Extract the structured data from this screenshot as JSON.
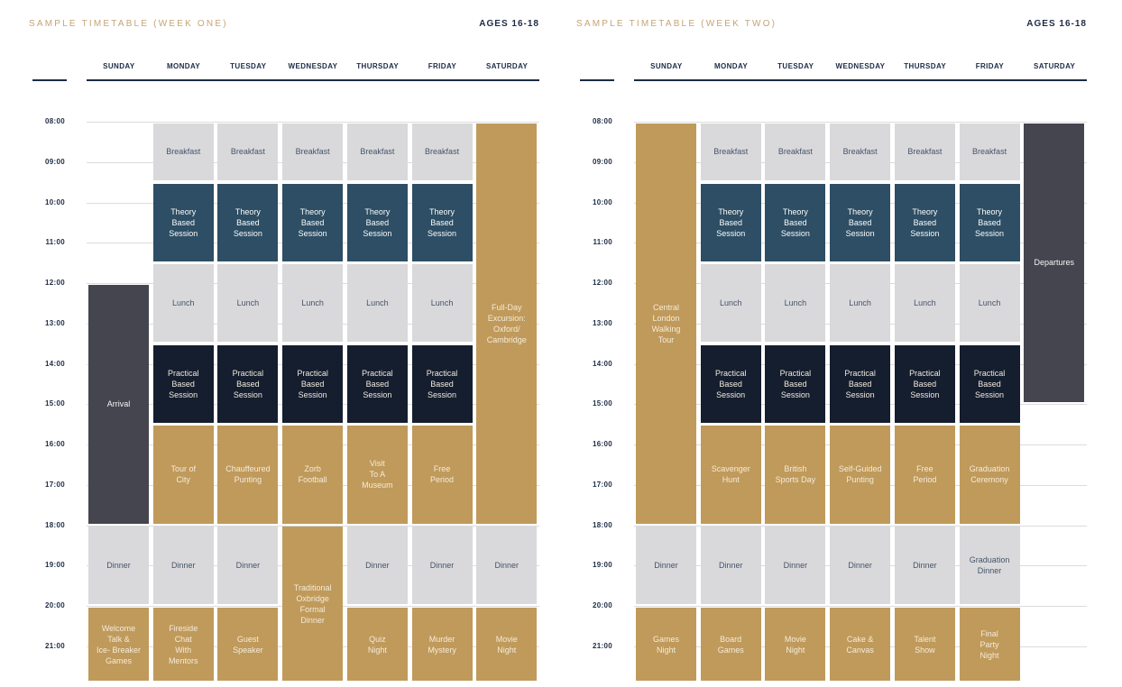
{
  "colors": {
    "title_gold": "#c5a474",
    "header_navy": "#1d2b45",
    "gridline": "#dcdcdd",
    "meal_bg": "#d9d9db",
    "meal_text": "#46536a",
    "theory_bg": "#2d4e64",
    "theory_text": "#fbfbfb",
    "practical_bg": "#151e2e",
    "practical_text": "#f0e9dd",
    "activity_bg": "#c09a5b",
    "activity_text": "#f4ebd8",
    "transfer_bg": "#45454f",
    "transfer_text": "#f4f4f6"
  },
  "tables": [
    {
      "title": "SAMPLE TIMETABLE (WEEK ONE)",
      "ages": "AGES 16-18",
      "days": [
        "SUNDAY",
        "MONDAY",
        "TUESDAY",
        "WEDNESDAY",
        "THURSDAY",
        "FRIDAY",
        "SATURDAY"
      ],
      "times": [
        "08:00",
        "09:00",
        "10:00",
        "11:00",
        "12:00",
        "13:00",
        "14:00",
        "15:00",
        "16:00",
        "17:00",
        "18:00",
        "19:00",
        "20:00",
        "21:00"
      ],
      "events": [
        {
          "day": 0,
          "start": 12,
          "end": 18,
          "type": "transfer",
          "label": "Arrival"
        },
        {
          "day": 0,
          "start": 18,
          "end": 20,
          "type": "meal",
          "label": "Dinner"
        },
        {
          "day": 0,
          "start": 20,
          "end": 21.9,
          "type": "activity",
          "label": "Welcome\nTalk &\nIce- Breaker\nGames"
        },
        {
          "day": 1,
          "start": 8,
          "end": 9.5,
          "type": "meal",
          "label": "Breakfast"
        },
        {
          "day": 1,
          "start": 9.5,
          "end": 11.5,
          "type": "theory",
          "label": "Theory\nBased\nSession"
        },
        {
          "day": 1,
          "start": 11.5,
          "end": 13.5,
          "type": "meal",
          "label": "Lunch"
        },
        {
          "day": 1,
          "start": 13.5,
          "end": 15.5,
          "type": "practical",
          "label": "Practical\nBased\nSession"
        },
        {
          "day": 1,
          "start": 15.5,
          "end": 18,
          "type": "activity",
          "label": "Tour of\nCity"
        },
        {
          "day": 1,
          "start": 18,
          "end": 20,
          "type": "meal",
          "label": "Dinner"
        },
        {
          "day": 1,
          "start": 20,
          "end": 21.9,
          "type": "activity",
          "label": "Fireside\nChat\nWith\nMentors"
        },
        {
          "day": 2,
          "start": 8,
          "end": 9.5,
          "type": "meal",
          "label": "Breakfast"
        },
        {
          "day": 2,
          "start": 9.5,
          "end": 11.5,
          "type": "theory",
          "label": "Theory\nBased\nSession"
        },
        {
          "day": 2,
          "start": 11.5,
          "end": 13.5,
          "type": "meal",
          "label": "Lunch"
        },
        {
          "day": 2,
          "start": 13.5,
          "end": 15.5,
          "type": "practical",
          "label": "Practical\nBased\nSession"
        },
        {
          "day": 2,
          "start": 15.5,
          "end": 18,
          "type": "activity",
          "label": "Chauffeured\nPunting"
        },
        {
          "day": 2,
          "start": 18,
          "end": 20,
          "type": "meal",
          "label": "Dinner"
        },
        {
          "day": 2,
          "start": 20,
          "end": 21.9,
          "type": "activity",
          "label": "Guest\nSpeaker"
        },
        {
          "day": 3,
          "start": 8,
          "end": 9.5,
          "type": "meal",
          "label": "Breakfast"
        },
        {
          "day": 3,
          "start": 9.5,
          "end": 11.5,
          "type": "theory",
          "label": "Theory\nBased\nSession"
        },
        {
          "day": 3,
          "start": 11.5,
          "end": 13.5,
          "type": "meal",
          "label": "Lunch"
        },
        {
          "day": 3,
          "start": 13.5,
          "end": 15.5,
          "type": "practical",
          "label": "Practical\nBased\nSession"
        },
        {
          "day": 3,
          "start": 15.5,
          "end": 18,
          "type": "activity",
          "label": "Zorb\nFootball"
        },
        {
          "day": 3,
          "start": 18,
          "end": 21.9,
          "type": "activity",
          "label": "Traditional\nOxbridge\nFormal\nDinner"
        },
        {
          "day": 4,
          "start": 8,
          "end": 9.5,
          "type": "meal",
          "label": "Breakfast"
        },
        {
          "day": 4,
          "start": 9.5,
          "end": 11.5,
          "type": "theory",
          "label": "Theory\nBased\nSession"
        },
        {
          "day": 4,
          "start": 11.5,
          "end": 13.5,
          "type": "meal",
          "label": "Lunch"
        },
        {
          "day": 4,
          "start": 13.5,
          "end": 15.5,
          "type": "practical",
          "label": "Practical\nBased\nSession"
        },
        {
          "day": 4,
          "start": 15.5,
          "end": 18,
          "type": "activity",
          "label": "Visit\nTo A\nMuseum"
        },
        {
          "day": 4,
          "start": 18,
          "end": 20,
          "type": "meal",
          "label": "Dinner"
        },
        {
          "day": 4,
          "start": 20,
          "end": 21.9,
          "type": "activity",
          "label": "Quiz\nNight"
        },
        {
          "day": 5,
          "start": 8,
          "end": 9.5,
          "type": "meal",
          "label": "Breakfast"
        },
        {
          "day": 5,
          "start": 9.5,
          "end": 11.5,
          "type": "theory",
          "label": "Theory\nBased\nSession"
        },
        {
          "day": 5,
          "start": 11.5,
          "end": 13.5,
          "type": "meal",
          "label": "Lunch"
        },
        {
          "day": 5,
          "start": 13.5,
          "end": 15.5,
          "type": "practical",
          "label": "Practical\nBased\nSession"
        },
        {
          "day": 5,
          "start": 15.5,
          "end": 18,
          "type": "activity",
          "label": "Free\nPeriod"
        },
        {
          "day": 5,
          "start": 18,
          "end": 20,
          "type": "meal",
          "label": "Dinner"
        },
        {
          "day": 5,
          "start": 20,
          "end": 21.9,
          "type": "activity",
          "label": "Murder\nMystery"
        },
        {
          "day": 6,
          "start": 8,
          "end": 18,
          "type": "activity",
          "label": "Full-Day\nExcursion:\nOxford/\nCambridge"
        },
        {
          "day": 6,
          "start": 18,
          "end": 20,
          "type": "meal",
          "label": "Dinner"
        },
        {
          "day": 6,
          "start": 20,
          "end": 21.9,
          "type": "activity",
          "label": "Movie\nNight"
        }
      ]
    },
    {
      "title": "SAMPLE TIMETABLE (WEEK TWO)",
      "ages": "AGES 16-18",
      "days": [
        "SUNDAY",
        "MONDAY",
        "TUESDAY",
        "WEDNESDAY",
        "THURSDAY",
        "FRIDAY",
        "SATURDAY"
      ],
      "times": [
        "08:00",
        "09:00",
        "10:00",
        "11:00",
        "12:00",
        "13:00",
        "14:00",
        "15:00",
        "16:00",
        "17:00",
        "18:00",
        "19:00",
        "20:00",
        "21:00"
      ],
      "events": [
        {
          "day": 0,
          "start": 8,
          "end": 18,
          "type": "activity",
          "label": "Central\nLondon\nWalking\nTour"
        },
        {
          "day": 0,
          "start": 18,
          "end": 20,
          "type": "meal",
          "label": "Dinner"
        },
        {
          "day": 0,
          "start": 20,
          "end": 21.9,
          "type": "activity",
          "label": "Games\nNight"
        },
        {
          "day": 1,
          "start": 8,
          "end": 9.5,
          "type": "meal",
          "label": "Breakfast"
        },
        {
          "day": 1,
          "start": 9.5,
          "end": 11.5,
          "type": "theory",
          "label": "Theory\nBased\nSession"
        },
        {
          "day": 1,
          "start": 11.5,
          "end": 13.5,
          "type": "meal",
          "label": "Lunch"
        },
        {
          "day": 1,
          "start": 13.5,
          "end": 15.5,
          "type": "practical",
          "label": "Practical\nBased\nSession"
        },
        {
          "day": 1,
          "start": 15.5,
          "end": 18,
          "type": "activity",
          "label": "Scavenger\nHunt"
        },
        {
          "day": 1,
          "start": 18,
          "end": 20,
          "type": "meal",
          "label": "Dinner"
        },
        {
          "day": 1,
          "start": 20,
          "end": 21.9,
          "type": "activity",
          "label": "Board\nGames"
        },
        {
          "day": 2,
          "start": 8,
          "end": 9.5,
          "type": "meal",
          "label": "Breakfast"
        },
        {
          "day": 2,
          "start": 9.5,
          "end": 11.5,
          "type": "theory",
          "label": "Theory\nBased\nSession"
        },
        {
          "day": 2,
          "start": 11.5,
          "end": 13.5,
          "type": "meal",
          "label": "Lunch"
        },
        {
          "day": 2,
          "start": 13.5,
          "end": 15.5,
          "type": "practical",
          "label": "Practical\nBased\nSession"
        },
        {
          "day": 2,
          "start": 15.5,
          "end": 18,
          "type": "activity",
          "label": "British\nSports Day"
        },
        {
          "day": 2,
          "start": 18,
          "end": 20,
          "type": "meal",
          "label": "Dinner"
        },
        {
          "day": 2,
          "start": 20,
          "end": 21.9,
          "type": "activity",
          "label": "Movie\nNight"
        },
        {
          "day": 3,
          "start": 8,
          "end": 9.5,
          "type": "meal",
          "label": "Breakfast"
        },
        {
          "day": 3,
          "start": 9.5,
          "end": 11.5,
          "type": "theory",
          "label": "Theory\nBased\nSession"
        },
        {
          "day": 3,
          "start": 11.5,
          "end": 13.5,
          "type": "meal",
          "label": "Lunch"
        },
        {
          "day": 3,
          "start": 13.5,
          "end": 15.5,
          "type": "practical",
          "label": "Practical\nBased\nSession"
        },
        {
          "day": 3,
          "start": 15.5,
          "end": 18,
          "type": "activity",
          "label": "Self-Guided\nPunting"
        },
        {
          "day": 3,
          "start": 18,
          "end": 20,
          "type": "meal",
          "label": "Dinner"
        },
        {
          "day": 3,
          "start": 20,
          "end": 21.9,
          "type": "activity",
          "label": "Cake &\nCanvas"
        },
        {
          "day": 4,
          "start": 8,
          "end": 9.5,
          "type": "meal",
          "label": "Breakfast"
        },
        {
          "day": 4,
          "start": 9.5,
          "end": 11.5,
          "type": "theory",
          "label": "Theory\nBased\nSession"
        },
        {
          "day": 4,
          "start": 11.5,
          "end": 13.5,
          "type": "meal",
          "label": "Lunch"
        },
        {
          "day": 4,
          "start": 13.5,
          "end": 15.5,
          "type": "practical",
          "label": "Practical\nBased\nSession"
        },
        {
          "day": 4,
          "start": 15.5,
          "end": 18,
          "type": "activity",
          "label": "Free\nPeriod"
        },
        {
          "day": 4,
          "start": 18,
          "end": 20,
          "type": "meal",
          "label": "Dinner"
        },
        {
          "day": 4,
          "start": 20,
          "end": 21.9,
          "type": "activity",
          "label": "Talent\nShow"
        },
        {
          "day": 5,
          "start": 8,
          "end": 9.5,
          "type": "meal",
          "label": "Breakfast"
        },
        {
          "day": 5,
          "start": 9.5,
          "end": 11.5,
          "type": "theory",
          "label": "Theory\nBased\nSession"
        },
        {
          "day": 5,
          "start": 11.5,
          "end": 13.5,
          "type": "meal",
          "label": "Lunch"
        },
        {
          "day": 5,
          "start": 13.5,
          "end": 15.5,
          "type": "practical",
          "label": "Practical\nBased\nSession"
        },
        {
          "day": 5,
          "start": 15.5,
          "end": 18,
          "type": "activity",
          "label": "Graduation\nCeremony"
        },
        {
          "day": 5,
          "start": 18,
          "end": 20,
          "type": "meal",
          "label": "Graduation\nDinner"
        },
        {
          "day": 5,
          "start": 20,
          "end": 21.9,
          "type": "activity",
          "label": "Final\nParty\nNight"
        },
        {
          "day": 6,
          "start": 8,
          "end": 15,
          "type": "transfer",
          "label": "Departures"
        }
      ]
    }
  ]
}
